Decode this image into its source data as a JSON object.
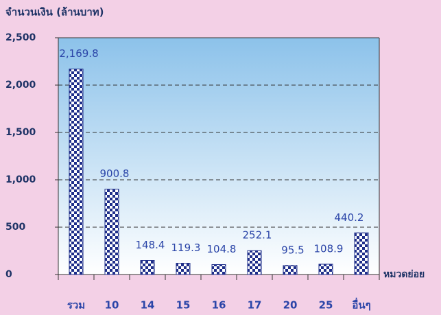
{
  "chart_data": {
    "type": "bar",
    "y_axis_label": "จำนวนเงิน (ล้านบาท)",
    "x_axis_label": "หมวดย่อย",
    "categories": [
      "รวม",
      "10",
      "14",
      "15",
      "16",
      "17",
      "20",
      "25",
      "อื่นๆ"
    ],
    "values": [
      2169.8,
      900.8,
      148.4,
      119.3,
      104.8,
      252.1,
      95.5,
      108.9,
      440.2
    ],
    "value_labels": [
      "2,169.8",
      "900.8",
      "148.4",
      "119.3",
      "104.8",
      "252.1",
      "95.5",
      "108.9",
      "440.2"
    ],
    "color": "#1f2f8a",
    "ylim": [
      0,
      2500
    ],
    "yticks": [
      0,
      500,
      {
        "value": 1000,
        "label": "1,000"
      },
      {
        "value": 1500,
        "label": "1,500"
      },
      {
        "value": 2000,
        "label": "2,000"
      },
      {
        "value": 2500,
        "label": "2,500"
      }
    ],
    "grid": true
  }
}
